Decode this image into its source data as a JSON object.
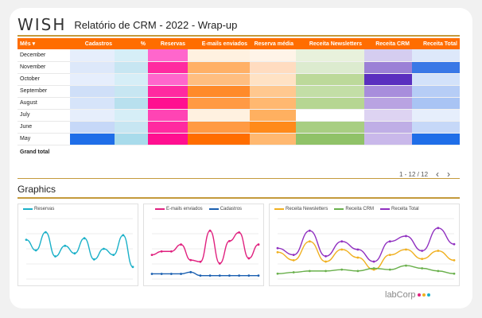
{
  "header": {
    "logo": "WISH",
    "title": "Relatório de CRM - 2022 - Wrap-up"
  },
  "table": {
    "columns": [
      "Mês",
      "Cadastros",
      "%",
      "Reservas",
      "E-mails enviados",
      "Reserva média",
      "Receita Newsletters",
      "Receita CRM",
      "Receita Total"
    ],
    "rows": [
      {
        "month": "December",
        "colors": [
          "#ffffff",
          "#ffffff",
          "#ff66cc",
          "#fff1e0",
          "#fff4e8",
          "#e8f1dc",
          "#d5cdf0",
          "#dde8fa"
        ]
      },
      {
        "month": "November",
        "colors": [
          "#ffffff",
          "#ffffff",
          "#ff2aa0",
          "#ffb066",
          "#ffdcc0",
          "#dcebcf",
          "#9b80d6",
          "#3a78e6"
        ]
      },
      {
        "month": "October",
        "colors": [
          "#ffffff",
          "#ffffff",
          "#ff66cc",
          "#ffbe80",
          "#ffe2c4",
          "#bcd99a",
          "#5a2fbf",
          "#d3e2fa"
        ]
      },
      {
        "month": "September",
        "colors": [
          "#ffffff",
          "#ffffff",
          "#ff2aa0",
          "#ff8a2a",
          "#ffc88f",
          "#c3dea6",
          "#a88ddc",
          "#b6cdf6"
        ]
      },
      {
        "month": "August",
        "colors": [
          "#ffffff",
          "#ffffff",
          "#ff0f90",
          "#ff9a44",
          "#ffb870",
          "#b6d692",
          "#b9a3e2",
          "#a9c4f4"
        ]
      },
      {
        "month": "July",
        "colors": [
          "#ffffff",
          "#ffffff",
          "#ff44b4",
          "#fff1e0",
          "#ffb060",
          "#ffffff",
          "#ddd3f2",
          "#e6eefc"
        ]
      },
      {
        "month": "June",
        "colors": [
          "#ffffff",
          "#ffffff",
          "#ff2aa0",
          "#ff9a44",
          "#ff8a1a",
          "#a8ce82",
          "#bfaee6",
          "#c6d8f8"
        ]
      },
      {
        "month": "May",
        "colors": [
          "#1f6ee8",
          "#ffffff",
          "#ff0f90",
          "#ff6d00",
          "#ffb870",
          "#90c268",
          "#c9b8ea",
          "#1f6ee8"
        ]
      }
    ],
    "total_label": "Grand total"
  },
  "pager": {
    "range": "1 - 12 / 12",
    "prev": "‹",
    "next": "›"
  },
  "graphics": {
    "title": "Graphics"
  },
  "chart_data": [
    {
      "type": "line",
      "series": [
        {
          "name": "Reservas",
          "color": "#1ab0c8",
          "values": [
            26,
            19,
            31,
            15,
            22,
            17,
            27,
            13,
            20,
            16,
            29,
            8
          ]
        }
      ],
      "ylim": [
        0,
        40
      ]
    },
    {
      "type": "line",
      "series": [
        {
          "name": "E-mails enviados",
          "color": "#e0217f",
          "values": [
            14,
            16,
            16,
            20,
            11,
            10,
            28,
            9,
            22,
            27,
            12,
            20
          ]
        },
        {
          "name": "Cadastros",
          "color": "#1a5fb0",
          "values": [
            3,
            3,
            3,
            3,
            4,
            2,
            2,
            2,
            2,
            2,
            2,
            2
          ]
        }
      ],
      "ylim": [
        0,
        35
      ]
    },
    {
      "type": "line",
      "series": [
        {
          "name": "Receita Newsletters",
          "color": "#f0b020",
          "values": [
            20,
            14,
            28,
            13,
            22,
            16,
            7,
            18,
            22,
            15,
            21,
            14
          ]
        },
        {
          "name": "Receita CRM",
          "color": "#6ab04c",
          "values": [
            4,
            5,
            6,
            6,
            7,
            6,
            8,
            7,
            10,
            8,
            6,
            4
          ]
        },
        {
          "name": "Receita Total",
          "color": "#9030c0",
          "values": [
            23,
            18,
            36,
            17,
            28,
            22,
            13,
            28,
            32,
            21,
            38,
            26
          ]
        }
      ],
      "ylim": [
        0,
        45
      ]
    }
  ],
  "footer": {
    "brand": "labCorp"
  }
}
